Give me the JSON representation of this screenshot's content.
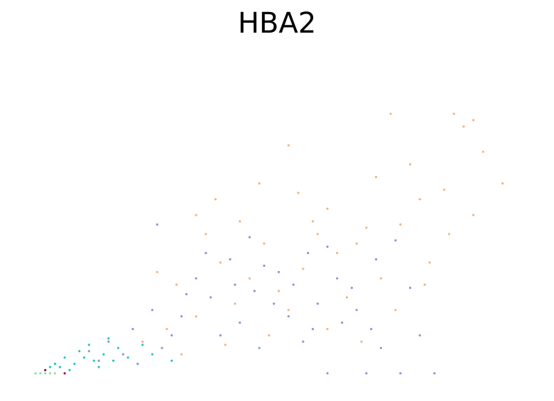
{
  "chart_data": {
    "type": "scatter",
    "title": "HBA2",
    "xlabel": "",
    "ylabel": "",
    "axes_visible": false,
    "grid": false,
    "legend": "none",
    "series": [
      {
        "color": "#f0b48a",
        "points": [
          [
            0.73,
            0.82
          ],
          [
            0.9,
            0.8
          ],
          [
            0.86,
            0.82
          ],
          [
            0.88,
            0.78
          ],
          [
            0.52,
            0.72
          ],
          [
            0.37,
            0.55
          ],
          [
            0.46,
            0.6
          ],
          [
            0.54,
            0.57
          ],
          [
            0.7,
            0.62
          ],
          [
            0.9,
            0.5
          ],
          [
            0.68,
            0.46
          ],
          [
            0.6,
            0.52
          ],
          [
            0.33,
            0.5
          ],
          [
            0.58,
            0.44
          ],
          [
            0.75,
            0.47
          ],
          [
            0.92,
            0.7
          ],
          [
            0.81,
            0.35
          ],
          [
            0.62,
            0.38
          ],
          [
            0.47,
            0.41
          ],
          [
            0.44,
            0.3
          ],
          [
            0.55,
            0.33
          ],
          [
            0.71,
            0.3
          ],
          [
            0.79,
            0.55
          ],
          [
            0.38,
            0.35
          ],
          [
            0.29,
            0.28
          ],
          [
            0.25,
            0.32
          ],
          [
            0.64,
            0.24
          ],
          [
            0.41,
            0.22
          ],
          [
            0.52,
            0.2
          ],
          [
            0.33,
            0.18
          ],
          [
            0.27,
            0.14
          ],
          [
            0.6,
            0.14
          ],
          [
            0.48,
            0.12
          ],
          [
            0.74,
            0.2
          ],
          [
            0.66,
            0.41
          ],
          [
            0.57,
            0.48
          ],
          [
            0.84,
            0.58
          ],
          [
            0.77,
            0.66
          ],
          [
            0.96,
            0.6
          ],
          [
            0.8,
            0.28
          ],
          [
            0.35,
            0.44
          ],
          [
            0.42,
            0.48
          ],
          [
            0.5,
            0.26
          ],
          [
            0.39,
            0.09
          ],
          [
            0.3,
            0.06
          ],
          [
            0.22,
            0.1
          ],
          [
            0.67,
            0.1
          ],
          [
            0.85,
            0.44
          ]
        ]
      },
      {
        "color": "#8b95e0",
        "points": [
          [
            0.25,
            0.47
          ],
          [
            0.4,
            0.36
          ],
          [
            0.5,
            0.32
          ],
          [
            0.56,
            0.38
          ],
          [
            0.62,
            0.3
          ],
          [
            0.7,
            0.36
          ],
          [
            0.77,
            0.27
          ],
          [
            0.45,
            0.26
          ],
          [
            0.52,
            0.18
          ],
          [
            0.36,
            0.24
          ],
          [
            0.3,
            0.18
          ],
          [
            0.42,
            0.16
          ],
          [
            0.58,
            0.22
          ],
          [
            0.66,
            0.2
          ],
          [
            0.33,
            0.3
          ],
          [
            0.47,
            0.34
          ],
          [
            0.6,
            0.4
          ],
          [
            0.74,
            0.42
          ],
          [
            0.53,
            0.28
          ],
          [
            0.28,
            0.12
          ],
          [
            0.38,
            0.12
          ],
          [
            0.46,
            0.08
          ],
          [
            0.55,
            0.1
          ],
          [
            0.63,
            0.16
          ],
          [
            0.71,
            0.08
          ],
          [
            0.2,
            0.14
          ],
          [
            0.24,
            0.2
          ],
          [
            0.15,
            0.1
          ],
          [
            0.18,
            0.06
          ],
          [
            0.44,
            0.43
          ],
          [
            0.35,
            0.38
          ],
          [
            0.49,
            0.22
          ],
          [
            0.57,
            0.14
          ],
          [
            0.65,
            0.27
          ],
          [
            0.69,
            0.14
          ],
          [
            0.79,
            0.12
          ],
          [
            0.41,
            0.28
          ],
          [
            0.31,
            0.25
          ],
          [
            0.26,
            0.08
          ],
          [
            0.13,
            0.04
          ],
          [
            0.21,
            0.03
          ],
          [
            0.11,
            0.07
          ],
          [
            0.6,
            0.0
          ],
          [
            0.68,
            0.0
          ],
          [
            0.75,
            0.0
          ],
          [
            0.82,
            0.0
          ]
        ]
      },
      {
        "color": "#20c8c8",
        "points": [
          [
            0.02,
            0.01
          ],
          [
            0.05,
            0.02
          ],
          [
            0.08,
            0.03
          ],
          [
            0.1,
            0.05
          ],
          [
            0.12,
            0.04
          ],
          [
            0.14,
            0.06
          ],
          [
            0.06,
            0.05
          ],
          [
            0.09,
            0.07
          ],
          [
            0.16,
            0.04
          ],
          [
            0.19,
            0.05
          ],
          [
            0.22,
            0.09
          ],
          [
            0.04,
            0.03
          ],
          [
            0.11,
            0.09
          ],
          [
            0.13,
            0.02
          ],
          [
            0.07,
            0.01
          ],
          [
            0.17,
            0.08
          ],
          [
            0.03,
            0.02
          ],
          [
            0.15,
            0.11
          ],
          [
            0.24,
            0.06
          ],
          [
            0.28,
            0.04
          ]
        ]
      },
      {
        "color": "#90e0a0",
        "points": [
          [
            0.0,
            0.0
          ],
          [
            0.01,
            0.0
          ],
          [
            0.02,
            0.0
          ],
          [
            0.03,
            0.0
          ],
          [
            0.04,
            0.0
          ]
        ]
      },
      {
        "color": "#a01040",
        "points": [
          [
            0.02,
            0.01
          ],
          [
            0.06,
            0.0
          ]
        ]
      }
    ]
  }
}
